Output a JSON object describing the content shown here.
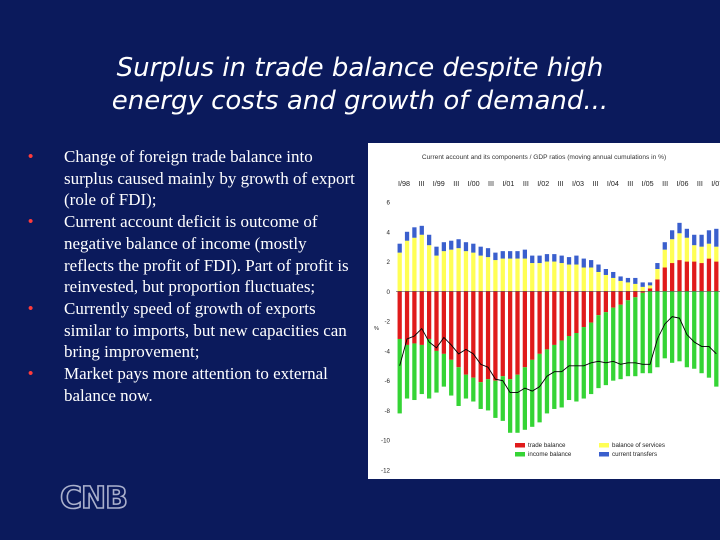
{
  "slide": {
    "title_line1": "Surplus in trade balance despite high",
    "title_line2": "energy costs and growth of demand...",
    "bullets": [
      "Change of foreign trade balance into surplus caused mainly by growth of export (role of FDI);",
      "Current account deficit is outcome of negative balance of income (mostly reflects the profit of FDI). Part of profit is reinvested, but proportion fluctuates;",
      "Currently speed of growth of exports similar to imports, but new capacities can bring improvement;",
      "Market pays more attention to external balance now."
    ],
    "logo_text": "CNB"
  },
  "chart_data": {
    "type": "bar",
    "stacked": true,
    "title": "Current account and its components / GDP ratios (moving annual cumulations in %)",
    "ylim": [
      -12,
      6
    ],
    "yticks": [
      6,
      4,
      2,
      0,
      -2,
      -4,
      -6,
      -8,
      -10,
      -12
    ],
    "ylabel": "%",
    "x_labels": [
      "I/98",
      "III",
      "I/99",
      "III",
      "I/00",
      "III",
      "I/01",
      "III",
      "I/02",
      "III",
      "I/03",
      "III",
      "I/04",
      "III",
      "I/05",
      "III",
      "I/06",
      "III",
      "I/07"
    ],
    "grid": false,
    "legend_position": "bottom",
    "colors": {
      "trade_balance": "#e01b1b",
      "balance_of_services": "#ffff55",
      "income_balance": "#35d435",
      "current_transfers": "#3a5fcd",
      "current_account": "#000000"
    },
    "series": [
      {
        "name": "trade balance",
        "key": "trade_balance",
        "values": [
          -3.2,
          -3.6,
          -3.5,
          -3.6,
          -3.2,
          -4.0,
          -4.2,
          -4.6,
          -5.1,
          -5.6,
          -5.8,
          -6.1,
          -5.9,
          -6.0,
          -5.7,
          -5.9,
          -5.6,
          -5.1,
          -4.6,
          -4.2,
          -3.9,
          -3.6,
          -3.3,
          -3.0,
          -2.8,
          -2.4,
          -2.1,
          -1.6,
          -1.4,
          -1.1,
          -0.9,
          -0.6,
          -0.4,
          -0.1,
          0.2,
          0.8,
          1.6,
          1.9,
          2.1,
          2.0,
          2.0,
          1.9,
          2.2,
          2.0
        ]
      },
      {
        "name": "balance of services",
        "key": "balance_of_services",
        "values": [
          2.6,
          3.4,
          3.6,
          3.8,
          3.1,
          2.4,
          2.7,
          2.8,
          2.9,
          2.7,
          2.6,
          2.4,
          2.3,
          2.1,
          2.2,
          2.2,
          2.2,
          2.2,
          1.9,
          1.9,
          2.0,
          2.0,
          1.9,
          1.8,
          1.8,
          1.6,
          1.6,
          1.3,
          1.1,
          0.9,
          0.7,
          0.6,
          0.5,
          0.3,
          0.2,
          0.7,
          1.2,
          1.6,
          1.8,
          1.6,
          1.1,
          1.1,
          1.0,
          1.0
        ]
      },
      {
        "name": "income balance",
        "key": "income_balance",
        "values": [
          -5.0,
          -3.6,
          -3.8,
          -3.3,
          -4.0,
          -2.8,
          -2.2,
          -2.4,
          -2.6,
          -1.6,
          -1.6,
          -1.8,
          -2.1,
          -2.5,
          -3.0,
          -3.6,
          -3.9,
          -4.2,
          -4.5,
          -4.6,
          -4.3,
          -4.3,
          -4.5,
          -4.3,
          -4.6,
          -4.8,
          -4.8,
          -4.9,
          -4.9,
          -4.9,
          -5.0,
          -5.1,
          -5.3,
          -5.4,
          -5.5,
          -5.1,
          -4.5,
          -4.8,
          -4.7,
          -5.1,
          -5.2,
          -5.5,
          -5.8,
          -6.4
        ]
      },
      {
        "name": "current transfers",
        "key": "current_transfers",
        "values": [
          0.6,
          0.6,
          0.7,
          0.6,
          0.7,
          0.6,
          0.6,
          0.6,
          0.6,
          0.6,
          0.6,
          0.6,
          0.6,
          0.5,
          0.5,
          0.5,
          0.5,
          0.6,
          0.5,
          0.5,
          0.5,
          0.5,
          0.5,
          0.5,
          0.6,
          0.6,
          0.5,
          0.5,
          0.4,
          0.4,
          0.3,
          0.3,
          0.4,
          0.3,
          0.2,
          0.4,
          0.5,
          0.6,
          0.7,
          0.6,
          0.7,
          0.8,
          0.9,
          1.2
        ]
      },
      {
        "name": "current account",
        "key": "current_account",
        "type": "line",
        "values": [
          -5.0,
          -3.2,
          -3.0,
          -2.5,
          -3.4,
          -3.8,
          -3.1,
          -3.6,
          -4.2,
          -3.9,
          -4.2,
          -4.9,
          -5.1,
          -5.9,
          -6.0,
          -6.8,
          -6.8,
          -6.5,
          -6.7,
          -6.4,
          -5.7,
          -5.4,
          -5.4,
          -5.0,
          -5.0,
          -5.0,
          -4.8,
          -4.7,
          -4.8,
          -4.7,
          -4.9,
          -4.8,
          -4.8,
          -4.9,
          -4.9,
          -3.2,
          -2.2,
          -1.7,
          -1.8,
          -2.9,
          -3.4,
          -3.7,
          -3.7,
          -4.2
        ]
      }
    ],
    "legend": [
      {
        "label": "trade balance",
        "key": "trade_balance"
      },
      {
        "label": "balance of services",
        "key": "balance_of_services"
      },
      {
        "label": "income balance",
        "key": "income_balance"
      },
      {
        "label": "current transfers",
        "key": "current_transfers"
      }
    ]
  }
}
